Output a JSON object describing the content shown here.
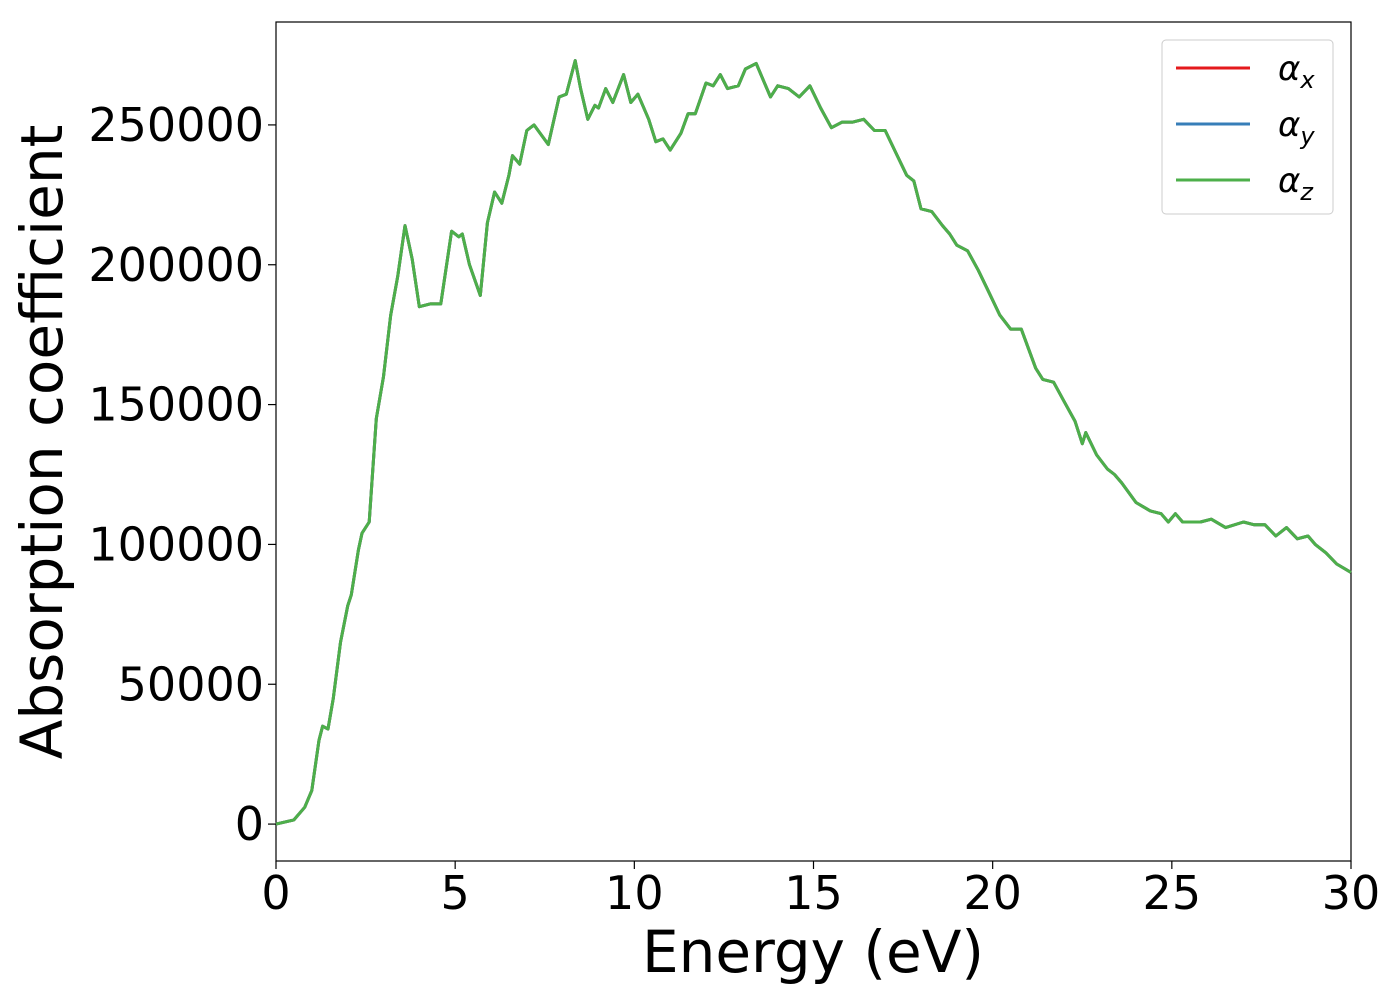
{
  "chart_data": {
    "type": "line",
    "xlabel": "Energy (eV)",
    "ylabel": "Absorption coefficient",
    "x": [
      0,
      0.5,
      0.8,
      1.0,
      1.2,
      1.3,
      1.45,
      1.6,
      1.8,
      2.0,
      2.1,
      2.3,
      2.4,
      2.6,
      2.8,
      3.0,
      3.2,
      3.4,
      3.6,
      3.8,
      4.0,
      4.3,
      4.6,
      4.9,
      5.1,
      5.2,
      5.4,
      5.7,
      5.9,
      6.1,
      6.3,
      6.5,
      6.6,
      6.8,
      7.0,
      7.2,
      7.6,
      7.9,
      8.1,
      8.35,
      8.5,
      8.7,
      8.9,
      9.0,
      9.2,
      9.4,
      9.7,
      9.9,
      10.1,
      10.4,
      10.6,
      10.8,
      11.0,
      11.3,
      11.5,
      11.7,
      12.0,
      12.2,
      12.4,
      12.6,
      12.9,
      13.1,
      13.4,
      13.6,
      13.8,
      14.0,
      14.3,
      14.6,
      14.9,
      15.2,
      15.5,
      15.8,
      16.1,
      16.4,
      16.7,
      17.0,
      17.3,
      17.6,
      17.8,
      18.0,
      18.3,
      18.6,
      18.8,
      19.0,
      19.3,
      19.6,
      19.9,
      20.2,
      20.5,
      20.8,
      21.0,
      21.2,
      21.4,
      21.7,
      22.0,
      22.3,
      22.5,
      22.6,
      22.9,
      23.2,
      23.4,
      23.6,
      24.0,
      24.4,
      24.7,
      24.9,
      25.1,
      25.3,
      25.8,
      26.1,
      26.5,
      27.0,
      27.3,
      27.6,
      27.9,
      28.2,
      28.5,
      28.8,
      29.0,
      29.3,
      29.6,
      30.0
    ],
    "series": [
      {
        "name": "αx",
        "color": "#e41a1c",
        "values": [
          0,
          1500,
          6000,
          12000,
          30000,
          35000,
          34000,
          45000,
          65000,
          78000,
          82000,
          98000,
          104000,
          108000,
          145000,
          160000,
          182000,
          196000,
          214000,
          202000,
          185000,
          186000,
          186000,
          212000,
          210000,
          211000,
          200000,
          189000,
          215000,
          226000,
          222000,
          232000,
          239000,
          236000,
          248000,
          250000,
          243000,
          260000,
          261000,
          273000,
          263000,
          252000,
          257000,
          256000,
          263000,
          258000,
          268000,
          258000,
          261000,
          252000,
          244000,
          245000,
          241000,
          247000,
          254000,
          254000,
          265000,
          264000,
          268000,
          263000,
          264000,
          270000,
          272000,
          266000,
          260000,
          264000,
          263000,
          260000,
          264000,
          256000,
          249000,
          251000,
          251000,
          252000,
          248000,
          248000,
          240000,
          232000,
          230000,
          220000,
          219000,
          214000,
          211000,
          207000,
          205000,
          198000,
          190000,
          182000,
          177000,
          177000,
          170000,
          163000,
          159000,
          158000,
          151000,
          144000,
          136000,
          140000,
          132000,
          127000,
          125000,
          122000,
          115000,
          112000,
          111000,
          108000,
          111000,
          108000,
          108000,
          109000,
          106000,
          108000,
          107000,
          107000,
          103000,
          106000,
          102000,
          103000,
          100000,
          97000,
          93000,
          90000
        ]
      },
      {
        "name": "αy",
        "color": "#377eb8",
        "values": [
          0,
          1500,
          6000,
          12000,
          30000,
          35000,
          34000,
          45000,
          65000,
          78000,
          82000,
          98000,
          104000,
          108000,
          145000,
          160000,
          182000,
          196000,
          214000,
          202000,
          185000,
          186000,
          186000,
          212000,
          210000,
          211000,
          200000,
          189000,
          215000,
          226000,
          222000,
          232000,
          239000,
          236000,
          248000,
          250000,
          243000,
          260000,
          261000,
          273000,
          263000,
          252000,
          257000,
          256000,
          263000,
          258000,
          268000,
          258000,
          261000,
          252000,
          244000,
          245000,
          241000,
          247000,
          254000,
          254000,
          265000,
          264000,
          268000,
          263000,
          264000,
          270000,
          272000,
          266000,
          260000,
          264000,
          263000,
          260000,
          264000,
          256000,
          249000,
          251000,
          251000,
          252000,
          248000,
          248000,
          240000,
          232000,
          230000,
          220000,
          219000,
          214000,
          211000,
          207000,
          205000,
          198000,
          190000,
          182000,
          177000,
          177000,
          170000,
          163000,
          159000,
          158000,
          151000,
          144000,
          136000,
          140000,
          132000,
          127000,
          125000,
          122000,
          115000,
          112000,
          111000,
          108000,
          111000,
          108000,
          108000,
          109000,
          106000,
          108000,
          107000,
          107000,
          103000,
          106000,
          102000,
          103000,
          100000,
          97000,
          93000,
          90000
        ]
      },
      {
        "name": "αz",
        "color": "#4daf4a",
        "values": [
          0,
          1500,
          6000,
          12000,
          30000,
          35000,
          34000,
          45000,
          65000,
          78000,
          82000,
          98000,
          104000,
          108000,
          145000,
          160000,
          182000,
          196000,
          214000,
          202000,
          185000,
          186000,
          186000,
          212000,
          210000,
          211000,
          200000,
          189000,
          215000,
          226000,
          222000,
          232000,
          239000,
          236000,
          248000,
          250000,
          243000,
          260000,
          261000,
          273000,
          263000,
          252000,
          257000,
          256000,
          263000,
          258000,
          268000,
          258000,
          261000,
          252000,
          244000,
          245000,
          241000,
          247000,
          254000,
          254000,
          265000,
          264000,
          268000,
          263000,
          264000,
          270000,
          272000,
          266000,
          260000,
          264000,
          263000,
          260000,
          264000,
          256000,
          249000,
          251000,
          251000,
          252000,
          248000,
          248000,
          240000,
          232000,
          230000,
          220000,
          219000,
          214000,
          211000,
          207000,
          205000,
          198000,
          190000,
          182000,
          177000,
          177000,
          170000,
          163000,
          159000,
          158000,
          151000,
          144000,
          136000,
          140000,
          132000,
          127000,
          125000,
          122000,
          115000,
          112000,
          111000,
          108000,
          111000,
          108000,
          108000,
          109000,
          106000,
          108000,
          107000,
          107000,
          103000,
          106000,
          102000,
          103000,
          100000,
          97000,
          93000,
          90000
        ]
      }
    ],
    "xlim": [
      0,
      30
    ],
    "xticks": [
      0,
      5,
      10,
      15,
      20,
      25,
      30
    ],
    "ylim": [
      -13200,
      286800
    ],
    "yticks": [
      0,
      50000,
      100000,
      150000,
      200000,
      250000
    ],
    "grid": false,
    "legend": "upper right"
  }
}
